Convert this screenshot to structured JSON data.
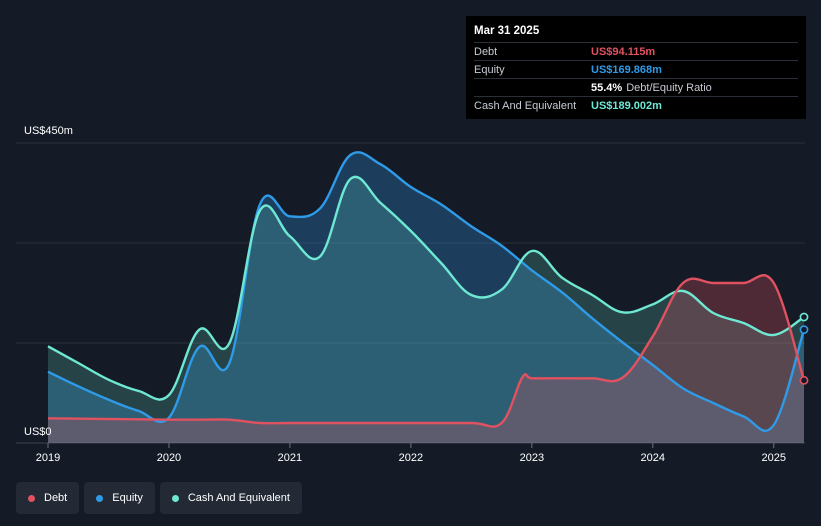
{
  "tooltip": {
    "date": "Mar 31 2025",
    "rows": {
      "debt": {
        "label": "Debt",
        "value": "US$94.115m"
      },
      "equity": {
        "label": "Equity",
        "value": "US$169.868m"
      },
      "ratio": {
        "value": "55.4%",
        "label": "Debt/Equity Ratio"
      },
      "cash": {
        "label": "Cash And Equivalent",
        "value": "US$189.002m"
      }
    }
  },
  "legend": {
    "debt": "Debt",
    "equity": "Equity",
    "cash": "Cash And Equivalent"
  },
  "colors": {
    "debt": "#e05260",
    "equity": "#2f9be8",
    "cash": "#6ee8d3",
    "background": "#151b26"
  },
  "chart_data": {
    "type": "area",
    "y_top_label": "US$450m",
    "y_bottom_label": "US$0",
    "ylim": [
      0,
      450
    ],
    "xlim": [
      2019.0,
      2025.25
    ],
    "x_ticks": [
      "2019",
      "2020",
      "2021",
      "2022",
      "2023",
      "2024",
      "2025"
    ],
    "grid": true,
    "legend_position": "bottom-left",
    "series": [
      {
        "name": "Debt",
        "key": "debt",
        "x": [
          2019.0,
          2019.5,
          2020.0,
          2020.25,
          2020.5,
          2020.75,
          2021.0,
          2021.5,
          2022.0,
          2022.5,
          2022.75,
          2022.92,
          2023.0,
          2023.25,
          2023.5,
          2023.75,
          2024.0,
          2024.25,
          2024.5,
          2024.75,
          2025.0,
          2025.25
        ],
        "values": [
          37,
          36,
          35,
          35,
          35,
          30,
          30,
          30,
          30,
          30,
          30,
          98,
          97,
          97,
          97,
          98,
          160,
          240,
          240,
          240,
          240,
          94
        ]
      },
      {
        "name": "Equity",
        "key": "equity",
        "x": [
          2019.0,
          2019.25,
          2019.5,
          2019.75,
          2020.0,
          2020.25,
          2020.5,
          2020.75,
          2021.0,
          2021.25,
          2021.5,
          2021.75,
          2022.0,
          2022.25,
          2022.5,
          2022.75,
          2023.0,
          2023.25,
          2023.5,
          2023.75,
          2024.0,
          2024.25,
          2024.5,
          2024.75,
          2025.0,
          2025.25
        ],
        "values": [
          107,
          85,
          65,
          48,
          38,
          144,
          120,
          357,
          340,
          352,
          432,
          418,
          384,
          358,
          325,
          296,
          259,
          226,
          187,
          151,
          117,
          82,
          60,
          40,
          27,
          170
        ]
      },
      {
        "name": "Cash And Equivalent",
        "key": "cash",
        "x": [
          2019.0,
          2019.25,
          2019.5,
          2019.75,
          2020.0,
          2020.25,
          2020.5,
          2020.75,
          2021.0,
          2021.25,
          2021.5,
          2021.75,
          2022.0,
          2022.25,
          2022.5,
          2022.75,
          2023.0,
          2023.25,
          2023.5,
          2023.75,
          2024.0,
          2024.25,
          2024.5,
          2024.75,
          2025.0,
          2025.25
        ],
        "values": [
          145,
          120,
          95,
          78,
          72,
          170,
          150,
          348,
          310,
          280,
          396,
          360,
          318,
          270,
          222,
          230,
          288,
          248,
          222,
          196,
          208,
          228,
          195,
          180,
          162,
          189
        ]
      }
    ]
  }
}
